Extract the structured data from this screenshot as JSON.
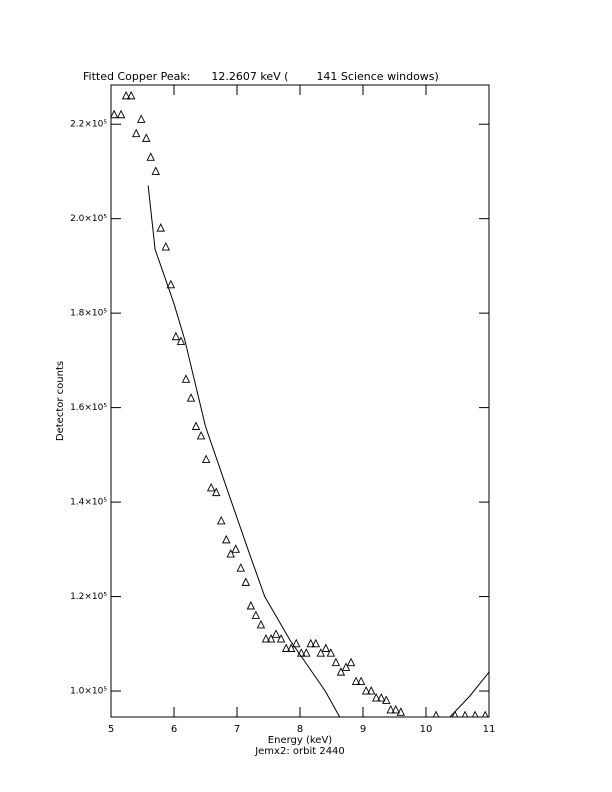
{
  "chart_data": {
    "type": "scatter",
    "title": "Fitted Copper Peak:      12.2607 keV (        141 Science windows)",
    "xlabel": "Energy (keV)",
    "subtitle": "Jemx2: orbit 2440",
    "ylabel": "Detector counts",
    "xlim": [
      5,
      11
    ],
    "xticks": [
      5,
      6,
      7,
      8,
      9,
      10,
      11
    ],
    "ylim": [
      94500,
      228300
    ],
    "yticks": [
      {
        "value": 100000,
        "label": "1.0×10⁵"
      },
      {
        "value": 120000,
        "label": "1.2×10⁵"
      },
      {
        "value": 140000,
        "label": "1.4×10⁵"
      },
      {
        "value": 160000,
        "label": "1.6×10⁵"
      },
      {
        "value": 180000,
        "label": "1.8×10⁵"
      },
      {
        "value": 200000,
        "label": "2.0×10⁵"
      },
      {
        "value": 220000,
        "label": "2.2×10⁵"
      }
    ],
    "series": [
      {
        "type": "scatter",
        "color": "#000000",
        "x": [
          5.05,
          5.16,
          5.24,
          5.32,
          5.4,
          5.48,
          5.56,
          5.63,
          5.71,
          5.79,
          5.87,
          5.95,
          6.03,
          6.11,
          6.19,
          6.27,
          6.35,
          6.43,
          6.51,
          6.59,
          6.67,
          6.75,
          6.83,
          6.9,
          6.98,
          7.06,
          7.14,
          7.22,
          7.3,
          7.38,
          7.46,
          7.54,
          7.62,
          7.7,
          7.78,
          7.86,
          7.94,
          8.02,
          8.1,
          8.17,
          8.25,
          8.33,
          8.41,
          8.49,
          8.57,
          8.65,
          8.73,
          8.81,
          8.89,
          8.97,
          9.05,
          9.13,
          9.21,
          9.29,
          9.37,
          9.44,
          9.52,
          9.6,
          10.16,
          10.46,
          10.62,
          10.78,
          10.94
        ],
        "values": [
          222000,
          222000,
          226000,
          226000,
          218000,
          221000,
          217000,
          213000,
          210000,
          198000,
          194000,
          186000,
          175000,
          174000,
          166000,
          162000,
          156000,
          154000,
          149000,
          143000,
          142000,
          136000,
          132000,
          129000,
          130000,
          126000,
          123000,
          118000,
          116000,
          114000,
          111000,
          111000,
          112000,
          111000,
          109000,
          109000,
          110000,
          108000,
          108000,
          110000,
          110000,
          108000,
          109000,
          108000,
          106000,
          104000,
          105000,
          106000,
          102000,
          102000,
          100000,
          100000,
          98500,
          98500,
          98000,
          96000,
          96000,
          95500,
          94800,
          94800,
          94800,
          94800,
          94800
        ]
      },
      {
        "type": "line",
        "color": "#000000",
        "x": [
          5.59,
          5.7,
          6.0,
          6.17,
          6.5,
          6.9,
          7.2,
          7.44,
          7.84,
          8.4,
          8.63,
          9.0,
          9.51,
          10.0,
          10.38,
          10.7,
          11.0
        ],
        "values": [
          207000,
          193500,
          182000,
          174400,
          156000,
          140500,
          129000,
          120000,
          110800,
          100000,
          94500,
          91200,
          89550,
          91100,
          94500,
          99000,
          104000
        ]
      }
    ]
  }
}
